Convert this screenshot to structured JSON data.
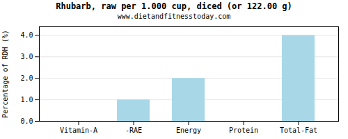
{
  "chart_data": {
    "type": "bar",
    "title": "Rhubarb, raw per 1.000 cup, diced (or 122.00 g)",
    "subtitle": "www.dietandfitnesstoday.com",
    "categories": [
      "Vitamin-A",
      "-RAE",
      "Energy",
      "Protein",
      "Total-Fat"
    ],
    "values": [
      0.0,
      1.0,
      2.0,
      0.0,
      4.0
    ],
    "color": "#a8d8e8",
    "ylabel": "Percentage of RDH (%)",
    "ylim": [
      0.0,
      4.4
    ],
    "yticks": [
      {
        "value": 0.0,
        "label": "0.0"
      },
      {
        "value": 1.0,
        "label": "1.0"
      },
      {
        "value": 2.0,
        "label": "2.0"
      },
      {
        "value": 3.0,
        "label": "3.0"
      },
      {
        "value": 4.0,
        "label": "4.0"
      }
    ],
    "grid": true
  }
}
